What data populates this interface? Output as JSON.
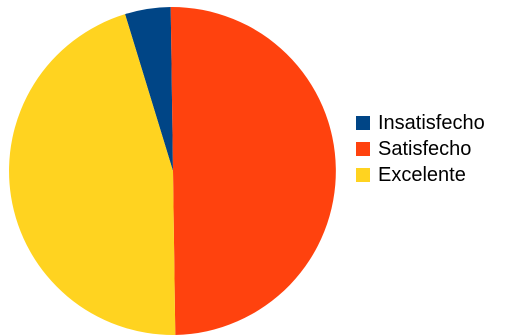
{
  "chart_data": {
    "type": "pie",
    "title": "",
    "categories": [
      "Insatisfecho",
      "Satisfecho",
      "Excelente"
    ],
    "values": [
      4.5,
      50,
      45.5
    ],
    "colors": [
      "#004586",
      "#ff420e",
      "#ffd320"
    ],
    "start_angle_deg": -17,
    "legend_position": "right"
  }
}
